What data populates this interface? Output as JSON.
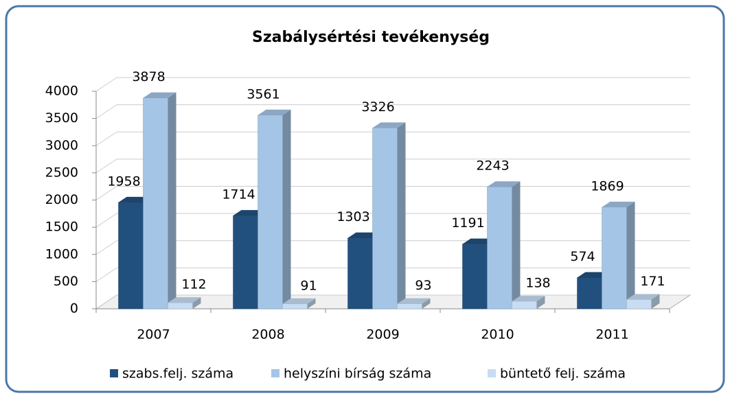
{
  "chart_data": {
    "type": "bar3d",
    "title": "Szabálysértési tevékenység",
    "categories": [
      "2007",
      "2008",
      "2009",
      "2010",
      "2011"
    ],
    "series": [
      {
        "name": "szabs.felj. száma",
        "color": "#22507e",
        "values": [
          1958,
          1714,
          1303,
          1191,
          574
        ]
      },
      {
        "name": "helyszíni bírság száma",
        "color": "#a5c5e6",
        "values": [
          3878,
          3561,
          3326,
          2243,
          1869
        ]
      },
      {
        "name": "büntető felj. száma",
        "color": "#c8ddf3",
        "values": [
          112,
          91,
          93,
          138,
          171
        ]
      }
    ],
    "ylim": [
      0,
      4000
    ],
    "yticks": [
      0,
      500,
      1000,
      1500,
      2000,
      2500,
      3000,
      3500,
      4000
    ],
    "grid": true,
    "legend": "bottom"
  }
}
